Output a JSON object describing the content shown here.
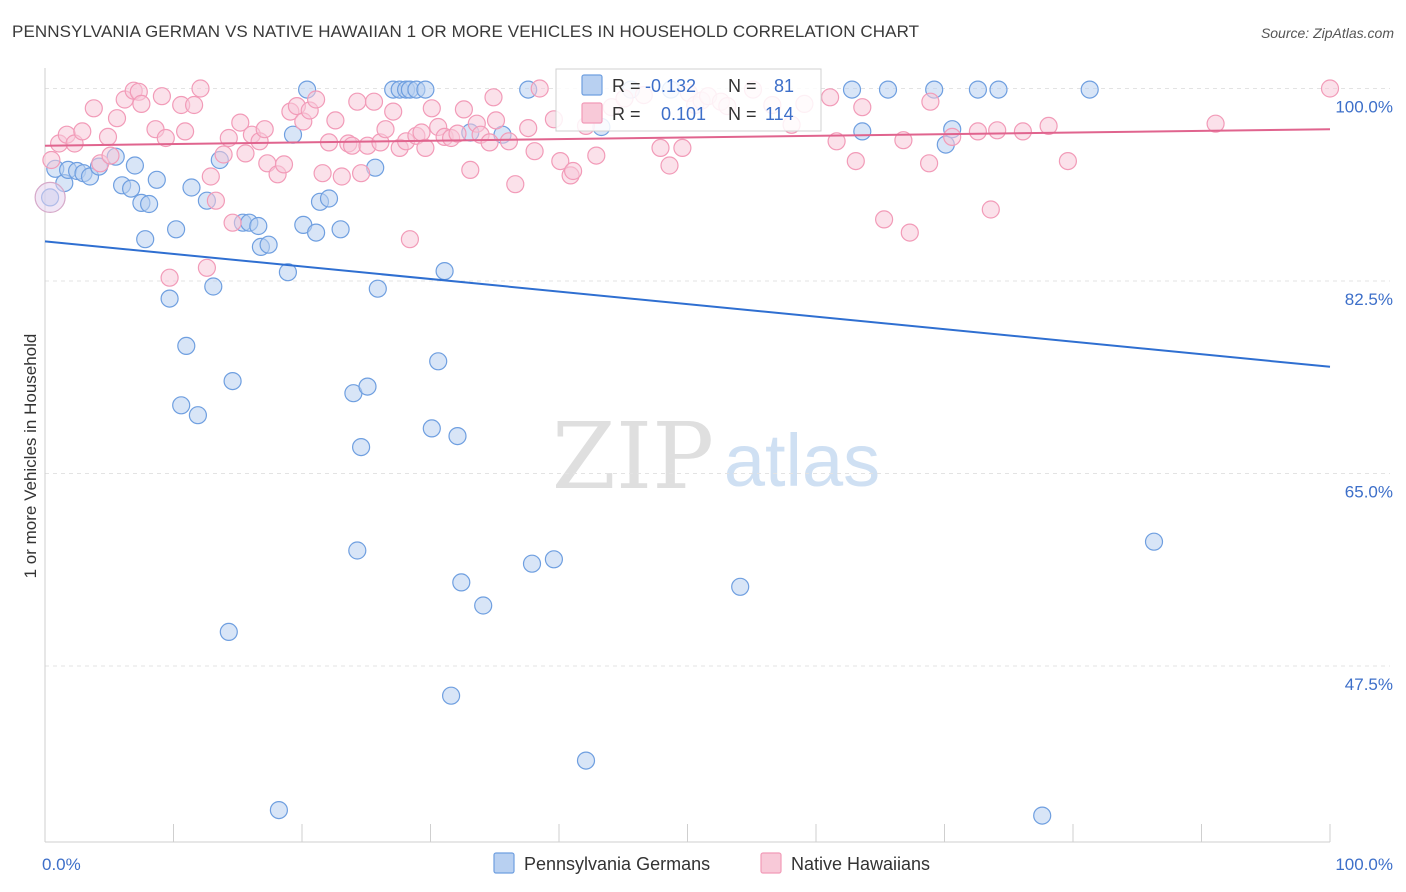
{
  "header": {
    "title": "PENNSYLVANIA GERMAN VS NATIVE HAWAIIAN 1 OR MORE VEHICLES IN HOUSEHOLD CORRELATION CHART",
    "source": "Source: ZipAtlas.com"
  },
  "watermark": {
    "zip": "ZIP",
    "atlas": "atlas"
  },
  "legend_box": {
    "rows": [
      {
        "r_label": "R =",
        "r_value": "-0.132",
        "n_label": "N =",
        "n_value": "81"
      },
      {
        "r_label": "R =",
        "r_value": "0.101",
        "n_label": "N =",
        "n_value": "114"
      }
    ]
  },
  "chart_data": {
    "type": "scatter",
    "title": "PENNSYLVANIA GERMAN VS NATIVE HAWAIIAN 1 OR MORE VEHICLES IN HOUSEHOLD CORRELATION CHART",
    "xlabel": "",
    "ylabel": "1 or more Vehicles in Household",
    "xlim": [
      0,
      100
    ],
    "ylim": [
      31.5,
      101.5
    ],
    "x_tick_labels": [
      "0.0%",
      "100.0%"
    ],
    "y_ticks": [
      100.0,
      82.5,
      65.0,
      47.5
    ],
    "y_tick_labels": [
      "100.0%",
      "82.5%",
      "65.0%",
      "47.5%"
    ],
    "grid": true,
    "legend_position": "bottom",
    "colors": {
      "series_1": "#6f9fe0",
      "series_1_line": "#2f6fd1",
      "series_2": "#f29bb8",
      "series_2_line": "#e0648e",
      "tick_text": "#3d6fc9"
    },
    "series": [
      {
        "name": "Pennsylvania Germans",
        "r": -0.132,
        "n": 81,
        "trend": {
          "x": [
            0,
            100
          ],
          "y": [
            86.1,
            74.7
          ]
        },
        "points": [
          [
            0.4,
            90.1
          ],
          [
            0.8,
            92.7
          ],
          [
            1.5,
            91.4
          ],
          [
            1.8,
            92.6
          ],
          [
            2.5,
            92.5
          ],
          [
            3,
            92.3
          ],
          [
            3.5,
            92.0
          ],
          [
            4.2,
            92.9
          ],
          [
            5.5,
            93.8
          ],
          [
            6,
            91.2
          ],
          [
            6.7,
            90.9
          ],
          [
            7,
            93.0
          ],
          [
            7.5,
            89.6
          ],
          [
            7.8,
            86.3
          ],
          [
            8.1,
            89.5
          ],
          [
            8.7,
            91.7
          ],
          [
            9.7,
            80.9
          ],
          [
            10.2,
            87.2
          ],
          [
            10.6,
            71.2
          ],
          [
            11,
            76.6
          ],
          [
            11.4,
            91.0
          ],
          [
            11.9,
            70.3
          ],
          [
            12.6,
            89.8
          ],
          [
            13.1,
            82.0
          ],
          [
            13.6,
            93.5
          ],
          [
            14.3,
            50.6
          ],
          [
            14.6,
            73.4
          ],
          [
            15.4,
            87.8
          ],
          [
            15.9,
            87.8
          ],
          [
            16.6,
            87.5
          ],
          [
            16.8,
            85.6
          ],
          [
            17.4,
            85.8
          ],
          [
            18.2,
            34.4
          ],
          [
            18.9,
            83.3
          ],
          [
            19.3,
            95.8
          ],
          [
            20.1,
            87.6
          ],
          [
            20.4,
            99.9
          ],
          [
            21.1,
            86.9
          ],
          [
            21.4,
            89.7
          ],
          [
            22.1,
            90.0
          ],
          [
            23,
            87.2
          ],
          [
            24,
            72.3
          ],
          [
            24.3,
            58.0
          ],
          [
            24.6,
            67.4
          ],
          [
            25.1,
            72.9
          ],
          [
            25.7,
            92.8
          ],
          [
            25.9,
            81.8
          ],
          [
            27.1,
            99.9
          ],
          [
            27.6,
            99.9
          ],
          [
            28.1,
            99.9
          ],
          [
            28.4,
            99.9
          ],
          [
            28.9,
            99.9
          ],
          [
            29.6,
            99.9
          ],
          [
            30.1,
            69.1
          ],
          [
            30.6,
            75.2
          ],
          [
            31.1,
            83.4
          ],
          [
            31.6,
            44.8
          ],
          [
            32.1,
            68.4
          ],
          [
            32.4,
            55.1
          ],
          [
            33.1,
            96.0
          ],
          [
            34.1,
            53.0
          ],
          [
            35.6,
            95.8
          ],
          [
            37.6,
            99.9
          ],
          [
            37.9,
            56.8
          ],
          [
            39.6,
            57.2
          ],
          [
            42.1,
            38.9
          ],
          [
            43.3,
            96.5
          ],
          [
            45.6,
            99.9
          ],
          [
            48.7,
            99.9
          ],
          [
            54.1,
            54.7
          ],
          [
            62.8,
            99.9
          ],
          [
            63.6,
            96.1
          ],
          [
            65.6,
            99.9
          ],
          [
            69.2,
            99.9
          ],
          [
            70.1,
            94.9
          ],
          [
            70.6,
            96.3
          ],
          [
            72.6,
            99.9
          ],
          [
            74.2,
            99.9
          ],
          [
            77.6,
            33.9
          ],
          [
            81.3,
            99.9
          ],
          [
            86.3,
            58.8
          ]
        ]
      },
      {
        "name": "Native Hawaiians",
        "r": 0.101,
        "n": 114,
        "trend": {
          "x": [
            0,
            100
          ],
          "y": [
            94.8,
            96.3
          ]
        },
        "points": [
          [
            0.5,
            93.5
          ],
          [
            1.1,
            95.0
          ],
          [
            1.7,
            95.8
          ],
          [
            2.3,
            95.0
          ],
          [
            2.9,
            96.1
          ],
          [
            3.8,
            98.2
          ],
          [
            4.3,
            93.2
          ],
          [
            4.9,
            95.6
          ],
          [
            5.1,
            93.9
          ],
          [
            5.6,
            97.3
          ],
          [
            6.2,
            99.0
          ],
          [
            6.9,
            99.8
          ],
          [
            7.3,
            99.7
          ],
          [
            7.5,
            98.6
          ],
          [
            8.6,
            96.3
          ],
          [
            9.1,
            99.3
          ],
          [
            9.4,
            95.5
          ],
          [
            9.7,
            82.8
          ],
          [
            10.6,
            98.5
          ],
          [
            10.9,
            96.1
          ],
          [
            11.6,
            98.5
          ],
          [
            12.1,
            100.0
          ],
          [
            12.6,
            83.7
          ],
          [
            12.9,
            92.0
          ],
          [
            13.3,
            89.8
          ],
          [
            13.9,
            94.0
          ],
          [
            14.3,
            95.5
          ],
          [
            14.6,
            87.8
          ],
          [
            15.2,
            96.9
          ],
          [
            15.6,
            94.1
          ],
          [
            16.1,
            95.8
          ],
          [
            16.7,
            95.2
          ],
          [
            17.1,
            96.3
          ],
          [
            17.3,
            93.2
          ],
          [
            18.1,
            92.2
          ],
          [
            18.6,
            93.1
          ],
          [
            19.1,
            97.9
          ],
          [
            19.6,
            98.4
          ],
          [
            20.1,
            97.0
          ],
          [
            20.6,
            98.0
          ],
          [
            21.1,
            99.0
          ],
          [
            21.6,
            92.3
          ],
          [
            22.1,
            95.1
          ],
          [
            22.6,
            97.1
          ],
          [
            23.1,
            92.0
          ],
          [
            23.6,
            95.0
          ],
          [
            23.9,
            94.8
          ],
          [
            24.3,
            98.8
          ],
          [
            24.6,
            92.3
          ],
          [
            25.1,
            94.8
          ],
          [
            25.6,
            98.8
          ],
          [
            26.1,
            95.1
          ],
          [
            26.5,
            96.3
          ],
          [
            27.1,
            97.9
          ],
          [
            27.6,
            94.6
          ],
          [
            28.1,
            95.2
          ],
          [
            28.4,
            86.3
          ],
          [
            28.9,
            95.7
          ],
          [
            29.3,
            96.0
          ],
          [
            29.6,
            94.6
          ],
          [
            30.1,
            98.2
          ],
          [
            30.6,
            96.5
          ],
          [
            31.1,
            95.6
          ],
          [
            31.6,
            95.5
          ],
          [
            32.1,
            95.9
          ],
          [
            32.6,
            98.1
          ],
          [
            33.1,
            92.6
          ],
          [
            33.6,
            96.8
          ],
          [
            33.9,
            95.8
          ],
          [
            34.6,
            95.1
          ],
          [
            34.9,
            99.2
          ],
          [
            35.1,
            97.1
          ],
          [
            36.1,
            95.2
          ],
          [
            36.6,
            91.3
          ],
          [
            37.6,
            96.4
          ],
          [
            38.1,
            94.3
          ],
          [
            38.5,
            100.0
          ],
          [
            39.6,
            97.2
          ],
          [
            40.1,
            93.4
          ],
          [
            40.9,
            92.1
          ],
          [
            41.1,
            92.5
          ],
          [
            42.1,
            96.6
          ],
          [
            42.9,
            93.9
          ],
          [
            44.1,
            98.3
          ],
          [
            45.1,
            99.1
          ],
          [
            46.6,
            99.4
          ],
          [
            47.9,
            94.6
          ],
          [
            48.6,
            93.0
          ],
          [
            49.6,
            94.6
          ],
          [
            50.1,
            99.6
          ],
          [
            50.6,
            98.5
          ],
          [
            51.1,
            98.9
          ],
          [
            51.6,
            99.3
          ],
          [
            52.6,
            98.8
          ],
          [
            53.1,
            98.4
          ],
          [
            55.1,
            99.9
          ],
          [
            56.6,
            98.5
          ],
          [
            58.1,
            96.7
          ],
          [
            59.1,
            98.6
          ],
          [
            61.1,
            99.2
          ],
          [
            61.6,
            95.2
          ],
          [
            63.1,
            93.4
          ],
          [
            63.6,
            98.3
          ],
          [
            65.3,
            88.1
          ],
          [
            66.8,
            95.3
          ],
          [
            67.3,
            86.9
          ],
          [
            68.8,
            93.2
          ],
          [
            68.9,
            98.8
          ],
          [
            70.6,
            95.6
          ],
          [
            72.6,
            96.1
          ],
          [
            73.6,
            89.0
          ],
          [
            74.1,
            96.2
          ],
          [
            76.1,
            96.1
          ],
          [
            78.1,
            96.6
          ],
          [
            79.6,
            93.4
          ],
          [
            91.1,
            96.8
          ],
          [
            100.0,
            100.0
          ]
        ]
      }
    ]
  },
  "bottom_legend": [
    {
      "label": "Pennsylvania Germans"
    },
    {
      "label": "Native Hawaiians"
    }
  ]
}
